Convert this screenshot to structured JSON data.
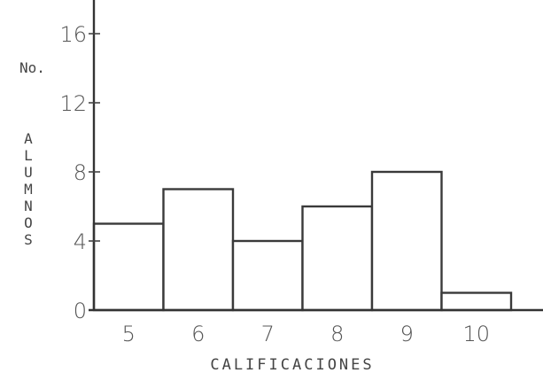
{
  "chart_data": {
    "type": "bar",
    "categories": [
      "5",
      "6",
      "7",
      "8",
      "9",
      "10"
    ],
    "values": [
      5,
      7,
      4,
      6,
      8,
      1
    ],
    "title": "",
    "xlabel": "CALIFICACIONES",
    "ylabel_line1": "No.",
    "ylabel_line2": "ALUMNOS",
    "ylim": [
      0,
      18
    ],
    "yticks": [
      "0",
      "4",
      "8",
      "12",
      "16"
    ],
    "grid": false,
    "legend": "none"
  }
}
